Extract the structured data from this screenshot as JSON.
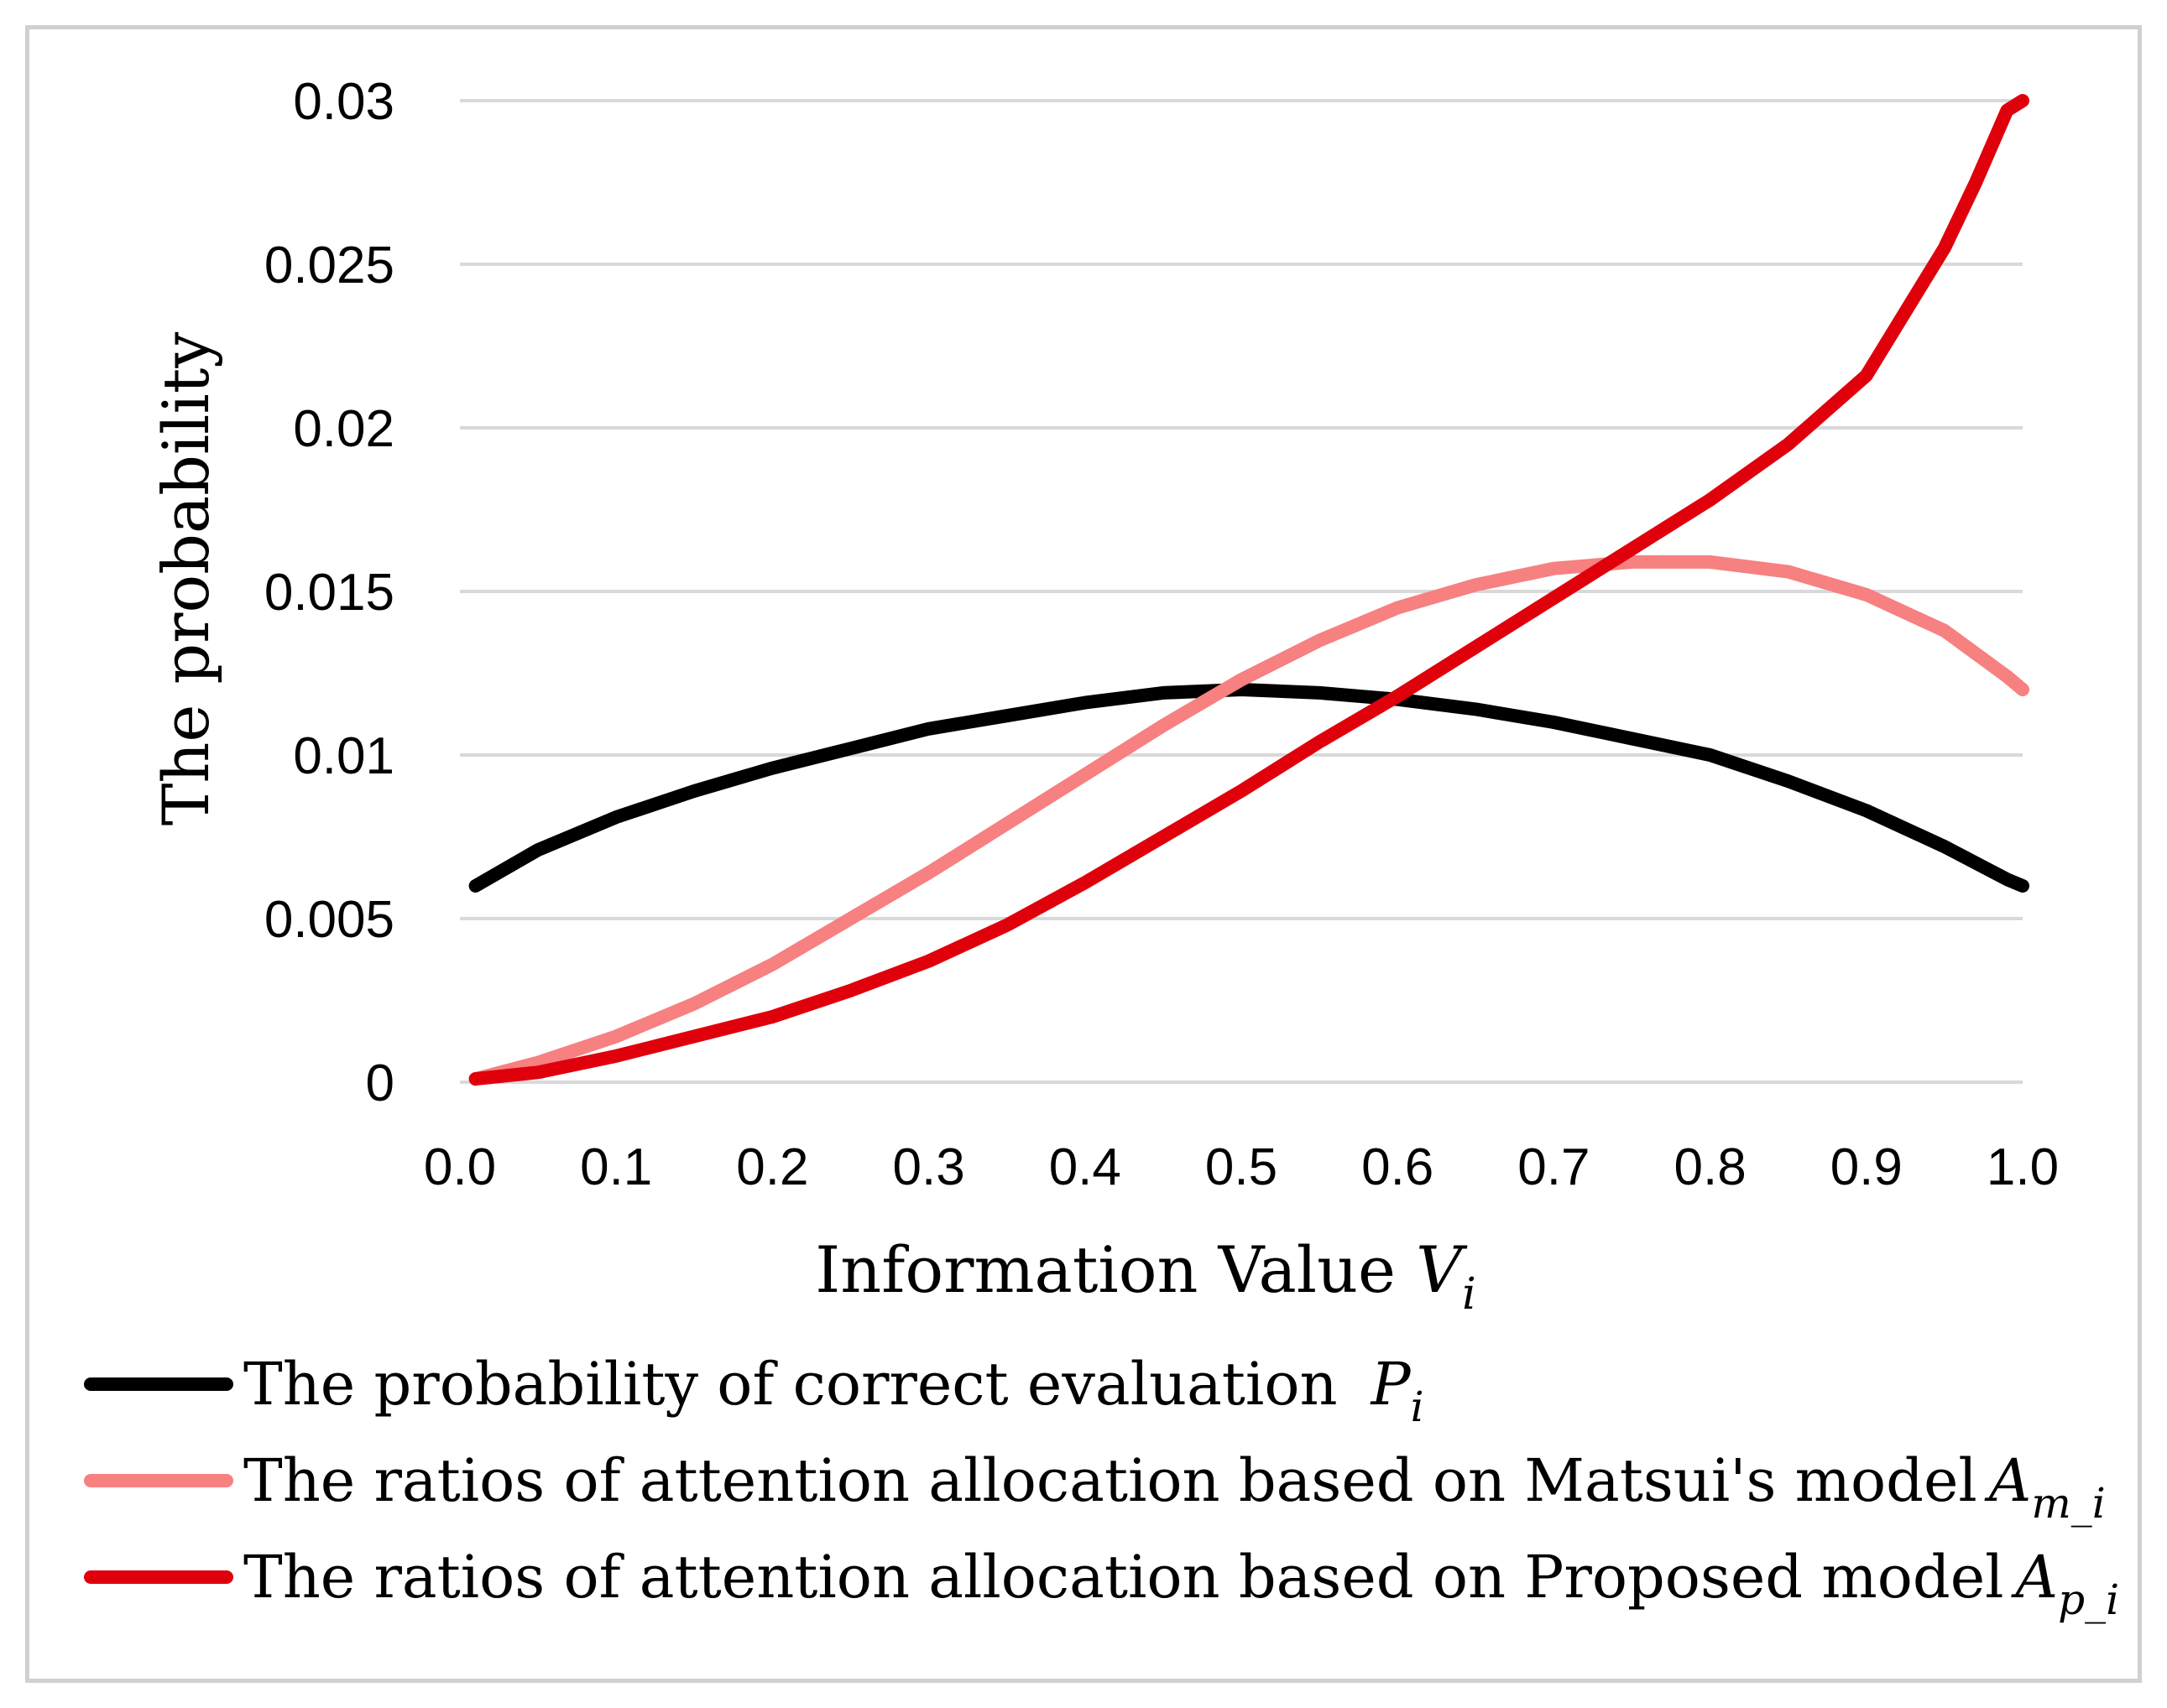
{
  "chart_data": {
    "type": "line",
    "title": "",
    "xlabel": "Information Value",
    "xlabel_symbol": "V",
    "xlabel_sub": "i",
    "ylabel": "The probability",
    "xlim": [
      0.0,
      1.0
    ],
    "ylim": [
      0,
      0.03
    ],
    "x_ticks": [
      "0.0",
      "0.1",
      "0.2",
      "0.3",
      "0.4",
      "0.5",
      "0.6",
      "0.7",
      "0.8",
      "0.9",
      "1.0"
    ],
    "y_ticks": [
      "0",
      "0.005",
      "0.01",
      "0.015",
      "0.02",
      "0.025",
      "0.03"
    ],
    "grid": "horizontal",
    "legend_position": "bottom",
    "x": [
      0.01,
      0.05,
      0.1,
      0.15,
      0.2,
      0.25,
      0.3,
      0.35,
      0.4,
      0.45,
      0.5,
      0.55,
      0.6,
      0.65,
      0.7,
      0.75,
      0.8,
      0.85,
      0.9,
      0.95,
      0.97,
      0.99,
      1.0
    ],
    "series": [
      {
        "name": "The probability of correct evaluation",
        "symbol": "P",
        "sub": "i",
        "color": "#000000",
        "values": [
          0.006,
          0.0071,
          0.0081,
          0.0089,
          0.0096,
          0.0102,
          0.0108,
          0.0112,
          0.0116,
          0.0119,
          0.012,
          0.0119,
          0.0117,
          0.0114,
          0.011,
          0.0105,
          0.01,
          0.0092,
          0.0083,
          0.0072,
          0.0067,
          0.0062,
          0.006
        ]
      },
      {
        "name": "The ratios of attention allocation based on Matsui's model",
        "symbol": "A",
        "sub": "m_i",
        "color": "#f78080",
        "values": [
          0.0001,
          0.0006,
          0.0014,
          0.0024,
          0.0036,
          0.005,
          0.0064,
          0.0079,
          0.0094,
          0.0109,
          0.0123,
          0.0135,
          0.0145,
          0.0152,
          0.0157,
          0.0159,
          0.0159,
          0.0156,
          0.0149,
          0.0138,
          0.0131,
          0.0124,
          0.012
        ]
      },
      {
        "name": "The ratios of attention allocation based on Proposed model",
        "symbol": "A",
        "sub": "p_i",
        "color": "#e0000c",
        "values": [
          0.0001,
          0.0003,
          0.0008,
          0.0014,
          0.002,
          0.0028,
          0.0037,
          0.0048,
          0.0061,
          0.0075,
          0.0089,
          0.0104,
          0.0118,
          0.0133,
          0.0148,
          0.0163,
          0.0178,
          0.0195,
          0.0216,
          0.0255,
          0.0275,
          0.0297,
          0.031
        ]
      }
    ]
  }
}
